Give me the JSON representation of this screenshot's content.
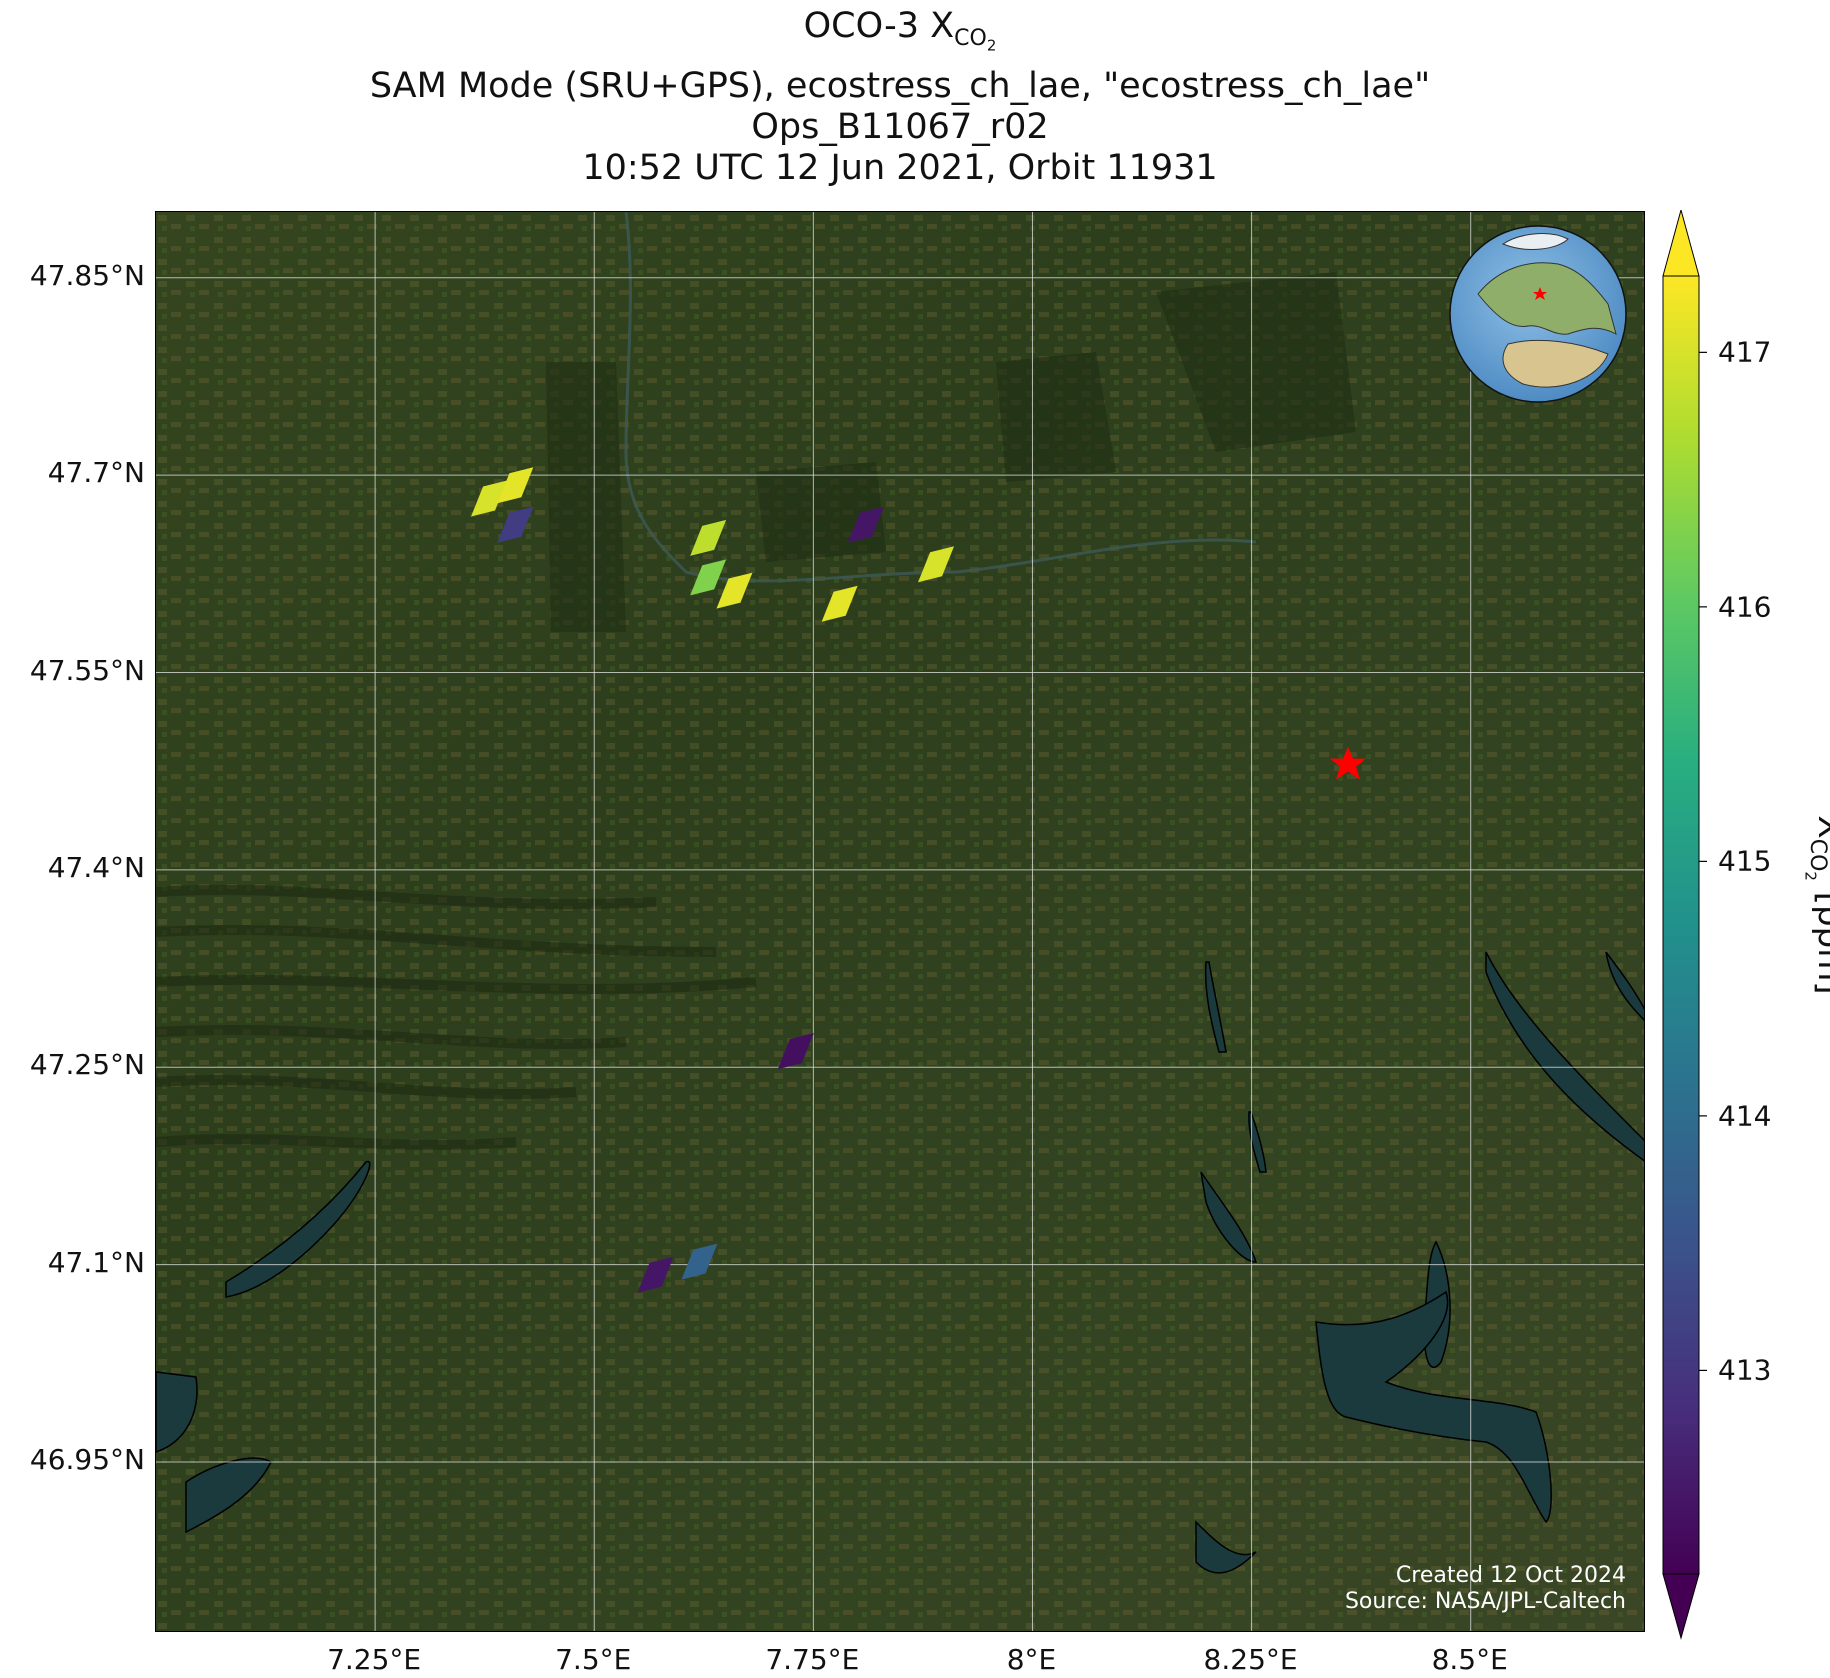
{
  "title": {
    "line1_prefix": "OCO-3 X",
    "line1_sub": "CO",
    "line1_subsub": "2",
    "line2": "SAM Mode (SRU+GPS), ecostress_ch_lae, \"ecostress_ch_lae\"",
    "line3": "Ops_B11067_r02",
    "line4": "10:52 UTC 12 Jun 2021, Orbit 11931"
  },
  "credit": {
    "line1": "Created 12 Oct 2024",
    "line2": "Source: NASA/JPL-Caltech"
  },
  "map": {
    "extent": {
      "lon": [
        7.0,
        8.7
      ],
      "lat": [
        46.82,
        47.9
      ]
    },
    "xticks": [
      {
        "value": 7.25,
        "label": "7.25°E"
      },
      {
        "value": 7.5,
        "label": "7.5°E"
      },
      {
        "value": 7.75,
        "label": "7.75°E"
      },
      {
        "value": 8.0,
        "label": "8°E"
      },
      {
        "value": 8.25,
        "label": "8.25°E"
      },
      {
        "value": 8.5,
        "label": "8.5°E"
      }
    ],
    "yticks": [
      {
        "value": 47.85,
        "label": "47.85°N"
      },
      {
        "value": 47.7,
        "label": "47.7°N"
      },
      {
        "value": 47.55,
        "label": "47.55°N"
      },
      {
        "value": 47.4,
        "label": "47.4°N"
      },
      {
        "value": 47.25,
        "label": "47.25°N"
      },
      {
        "value": 47.1,
        "label": "47.1°N"
      },
      {
        "value": 46.95,
        "label": "46.95°N"
      }
    ],
    "gridlines": true,
    "background": "satellite imagery",
    "target_marker": {
      "lon": 8.36,
      "lat": 47.48,
      "color": "#ff0000",
      "icon": "star-icon"
    },
    "inset_globe": {
      "position": "top-right",
      "icon": "globe-icon"
    }
  },
  "chart_data": {
    "type": "scatter",
    "variable": "XCO2",
    "unit": "ppm",
    "points": [
      {
        "lon": 7.38,
        "lat": 47.68,
        "xco2": 417.0
      },
      {
        "lon": 7.41,
        "lat": 47.69,
        "xco2": 417.1
      },
      {
        "lon": 7.41,
        "lat": 47.66,
        "xco2": 413.1
      },
      {
        "lon": 7.63,
        "lat": 47.65,
        "xco2": 416.8
      },
      {
        "lon": 7.63,
        "lat": 47.62,
        "xco2": 416.3
      },
      {
        "lon": 7.66,
        "lat": 47.61,
        "xco2": 417.1
      },
      {
        "lon": 7.78,
        "lat": 47.6,
        "xco2": 417.1
      },
      {
        "lon": 7.81,
        "lat": 47.66,
        "xco2": 412.5
      },
      {
        "lon": 7.89,
        "lat": 47.63,
        "xco2": 417.0
      },
      {
        "lon": 7.73,
        "lat": 47.26,
        "xco2": 412.4
      },
      {
        "lon": 7.57,
        "lat": 47.09,
        "xco2": 412.5
      },
      {
        "lon": 7.62,
        "lat": 47.1,
        "xco2": 413.8
      }
    ]
  },
  "colorbar": {
    "min": 412.2,
    "max": 417.3,
    "colormap": "viridis",
    "extend": "both",
    "ticks": [
      413,
      414,
      415,
      416,
      417
    ],
    "tick_labels": [
      "413",
      "414",
      "415",
      "416",
      "417"
    ],
    "label_prefix": "X",
    "label_sub": "CO",
    "label_subsub": "2",
    "label_suffix": " [ppm]"
  },
  "colors": {
    "star": "#ff0000",
    "lake": "#1b3a3e",
    "grid": "#e6e6e6"
  }
}
